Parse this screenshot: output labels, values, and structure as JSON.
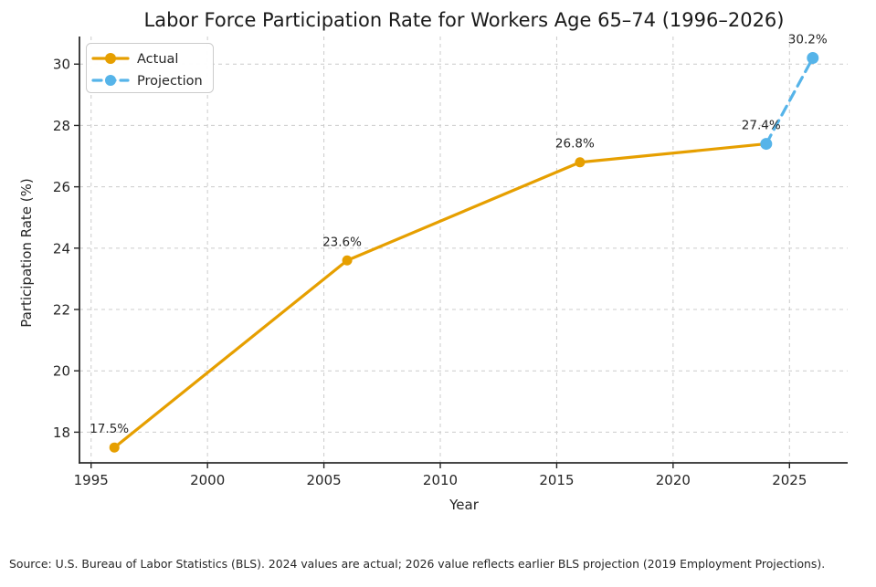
{
  "chart_data": {
    "type": "line",
    "title": "Labor Force Participation Rate for Workers Age 65–74 (1996–2026)",
    "xlabel": "Year",
    "ylabel": "Participation Rate (%)",
    "xlim": [
      1994.5,
      2027.5
    ],
    "ylim": [
      17.0,
      30.9
    ],
    "x_ticks": [
      1995,
      2000,
      2005,
      2010,
      2015,
      2020,
      2025
    ],
    "y_ticks": [
      18,
      20,
      22,
      24,
      26,
      28,
      30
    ],
    "grid": true,
    "legend_position": "upper-left",
    "series": [
      {
        "name": "Actual",
        "color": "#E69F00",
        "style": "solid",
        "x": [
          1996,
          2006,
          2016,
          2024
        ],
        "y": [
          17.5,
          23.6,
          26.8,
          27.4
        ]
      },
      {
        "name": "Projection",
        "color": "#56B4E9",
        "style": "dashed",
        "x": [
          2024,
          2026
        ],
        "y": [
          27.4,
          30.2
        ]
      }
    ],
    "annotations": [
      {
        "x": 1996,
        "y": 17.5,
        "label": "17.5%"
      },
      {
        "x": 2006,
        "y": 23.6,
        "label": "23.6%"
      },
      {
        "x": 2016,
        "y": 26.8,
        "label": "26.8%"
      },
      {
        "x": 2024,
        "y": 27.4,
        "label": "27.4%"
      },
      {
        "x": 2026,
        "y": 30.2,
        "label": "30.2%"
      }
    ],
    "source_note": "Source: U.S. Bureau of Labor Statistics (BLS). 2024 values are actual; 2026 value reflects earlier BLS projection (2019 Employment Projections)."
  },
  "colors": {
    "background": "#ffffff",
    "grid": "#cccccc",
    "spine": "#2b2b2b",
    "tick": "#262626",
    "legend_border": "#cccccc",
    "actual": "#E69F00",
    "projection": "#56B4E9"
  }
}
